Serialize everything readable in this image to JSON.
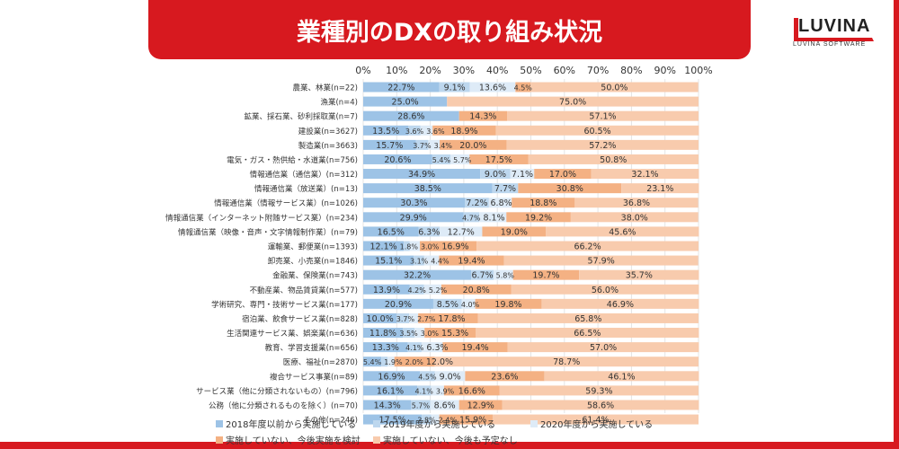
{
  "header": {
    "title": "業種別のDXの取り組み状況"
  },
  "logo": {
    "text": "LUVINA",
    "subtitle": "LUVINA SOFTWARE"
  },
  "chart_data": {
    "type": "bar",
    "orientation": "horizontal-stacked-100",
    "xlim": [
      0,
      100
    ],
    "x_ticks": [
      "0%",
      "10%",
      "20%",
      "30%",
      "40%",
      "50%",
      "60%",
      "70%",
      "80%",
      "90%",
      "100%"
    ],
    "grid": true,
    "legend_position": "bottom",
    "colors": [
      "#9dc3e6",
      "#bdd7ee",
      "#deebf7",
      "#f4b183",
      "#f8cbad"
    ],
    "categories": [
      "農業、林業(n=22)",
      "漁業(n=4)",
      "鉱業、採石業、砂利採取業(n=7)",
      "建設業(n=3627)",
      "製造業(n=3663)",
      "電気・ガス・熱供給・水道業(n=756)",
      "情報通信業（通信業）(n=312)",
      "情報通信業（放送業）(n=13)",
      "情報通信業（情報サービス業）(n=1026)",
      "情報通信業（インターネット附随サービス業）(n=234)",
      "情報通信業（映像・音声・文字情報制作業）(n=79)",
      "運輸業、郵便業(n=1393)",
      "卸売業、小売業(n=1846)",
      "金融業、保険業(n=743)",
      "不動産業、物品賃貸業(n=577)",
      "学術研究、専門・技術サービス業(n=177)",
      "宿泊業、飲食サービス業(n=828)",
      "生活関連サービス業、娯楽業(n=636)",
      "教育、学習支援業(n=656)",
      "医療、福祉(n=2870)",
      "複合サービス事業(n=89)",
      "サービス業（他に分類されないもの）(n=796)",
      "公務（他に分類されるものを除く）(n=70)",
      "その他(n=246)"
    ],
    "series": [
      {
        "name": "2018年度以前から実施している",
        "values": [
          22.7,
          25.0,
          28.6,
          13.5,
          15.7,
          20.6,
          34.9,
          38.5,
          30.3,
          29.9,
          16.5,
          12.1,
          15.1,
          32.2,
          13.9,
          20.9,
          10.0,
          11.8,
          13.3,
          5.4,
          16.9,
          16.1,
          14.3,
          17.5
        ]
      },
      {
        "name": "2019年度から実施している",
        "values": [
          9.1,
          0,
          0,
          3.6,
          3.7,
          5.4,
          9.0,
          7.7,
          7.2,
          4.7,
          6.3,
          1.8,
          3.1,
          6.7,
          4.2,
          8.5,
          3.7,
          3.5,
          4.1,
          1.9,
          4.5,
          4.1,
          5.7,
          2.8
        ]
      },
      {
        "name": "2020年度から実施している",
        "values": [
          13.6,
          0,
          0,
          3.6,
          3.4,
          5.7,
          7.1,
          0,
          6.8,
          8.1,
          12.7,
          3.0,
          4.4,
          5.8,
          5.2,
          4.0,
          2.7,
          3.0,
          6.3,
          2.0,
          9.0,
          3.9,
          8.6,
          2.4
        ]
      },
      {
        "name": "実施していない、今後実施を検討",
        "values": [
          4.5,
          0,
          14.3,
          18.9,
          20.0,
          17.5,
          17.0,
          30.8,
          18.8,
          19.2,
          19.0,
          16.9,
          19.4,
          19.7,
          20.8,
          19.8,
          17.8,
          15.3,
          19.4,
          12.0,
          23.6,
          16.6,
          12.9,
          15.9
        ]
      },
      {
        "name": "実施していない、今後も予定なし",
        "values": [
          50.0,
          75.0,
          57.1,
          60.5,
          57.2,
          50.8,
          32.1,
          23.1,
          36.8,
          38.0,
          45.6,
          66.2,
          57.9,
          35.7,
          56.0,
          46.9,
          65.8,
          66.5,
          57.0,
          78.7,
          46.1,
          59.3,
          58.6,
          61.4
        ]
      }
    ]
  }
}
